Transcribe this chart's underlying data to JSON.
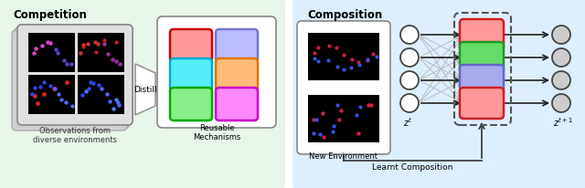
{
  "competition_bg": "#e8f5e9",
  "composition_bg": "#ddeeff",
  "competition_title": "Competition",
  "composition_title": "Composition",
  "obs_label": "Observations from\ndiverse environments",
  "distill_label": "Distill",
  "reusable_label": "Reusable\nMechanisms",
  "new_env_label": "New Environment",
  "learnt_label": "Learnt Composition",
  "mechanism_colors": [
    "#ff9999",
    "#bbbbff",
    "#55eeff",
    "#ffbb77",
    "#88ee88",
    "#ff88ff"
  ],
  "mechanism_borders": [
    "#cc0000",
    "#7777cc",
    "#00aacc",
    "#dd7700",
    "#00aa00",
    "#cc00cc"
  ],
  "right_mech_colors": [
    "#ff9999",
    "#66dd66",
    "#aaaaee",
    "#ff9999"
  ],
  "right_mech_borders": [
    "#cc2222",
    "#229922",
    "#6666cc",
    "#cc2222"
  ],
  "circle_fill_left": "#ffffff",
  "circle_fill_right": "#cccccc",
  "circle_edge": "#444444",
  "arrow_dark": "#222222",
  "arrow_gray": "#aaaaaa"
}
